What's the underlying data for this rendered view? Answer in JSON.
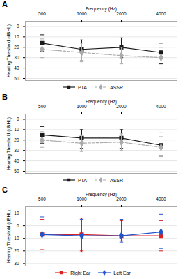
{
  "chart_data": [
    {
      "type": "line",
      "title": "A",
      "categories": [
        "500",
        "1000",
        "2000",
        "4000"
      ],
      "xlabel": "Frequency (Hz)",
      "ylabel": "Hearing Threshold (dBHL)",
      "ylim": [
        52,
        -5
      ],
      "yticks": [
        0,
        10,
        20,
        30,
        40,
        50
      ],
      "grid": true,
      "legend": "bottom",
      "series": [
        {
          "name": "PTA",
          "color": "#1a1a1a",
          "marker": "square",
          "line_style": "solid",
          "values": [
            16,
            22,
            20,
            25
          ],
          "err_lower": [
            8,
            9,
            9,
            9
          ],
          "err_upper": [
            8,
            11,
            10,
            11
          ]
        },
        {
          "name": "ASSR",
          "color": "#aaaaaa",
          "marker": "diamond",
          "line_style": "dashed",
          "values": [
            22,
            25,
            28,
            30
          ],
          "err_lower": [
            10,
            9,
            8,
            10
          ],
          "err_upper": [
            8,
            9,
            8,
            10
          ]
        }
      ]
    },
    {
      "type": "line",
      "title": "B",
      "categories": [
        "500",
        "1000",
        "2000",
        "4000"
      ],
      "xlabel": "Frequency (Hz)",
      "ylabel": "Hearing Threshold (dBHL)",
      "ylim": [
        52,
        -5
      ],
      "yticks": [
        0,
        10,
        20,
        30,
        40,
        50
      ],
      "grid": true,
      "legend": "bottom",
      "series": [
        {
          "name": "PTA",
          "color": "#1a1a1a",
          "marker": "square",
          "line_style": "solid",
          "values": [
            15,
            18,
            18,
            25
          ],
          "err_lower": [
            8,
            8,
            8,
            8
          ],
          "err_upper": [
            8,
            10,
            10,
            10
          ]
        },
        {
          "name": "ASSR",
          "color": "#aaaaaa",
          "marker": "diamond",
          "line_style": "dashed",
          "values": [
            20,
            23,
            22,
            27
          ],
          "err_lower": [
            8,
            8,
            8,
            14
          ],
          "err_upper": [
            7,
            8,
            8,
            9
          ]
        }
      ]
    },
    {
      "type": "line",
      "title": "C",
      "categories": [
        "500",
        "1000",
        "2000",
        "4000"
      ],
      "xlabel": "Frequency (Hz)",
      "ylabel": "Hearing Threshold (dBHL)",
      "ylim": [
        32,
        -15
      ],
      "yticks": [
        -10,
        0,
        10,
        20,
        30
      ],
      "grid": true,
      "legend": "bottom",
      "series": [
        {
          "name": "Right Ear",
          "color": "#dd2222",
          "marker": "square",
          "line_style": "solid",
          "values": [
            7,
            7,
            8,
            8
          ],
          "err_lower": [
            12,
            13,
            12,
            12
          ],
          "err_upper": [
            12,
            13,
            4,
            12
          ]
        },
        {
          "name": "Left Ear",
          "color": "#2255cc",
          "marker": "diamond",
          "line_style": "solid",
          "values": [
            7,
            8,
            8,
            5
          ],
          "err_lower": [
            14,
            13,
            13,
            14
          ],
          "err_upper": [
            14,
            13,
            5,
            13
          ]
        }
      ]
    }
  ]
}
